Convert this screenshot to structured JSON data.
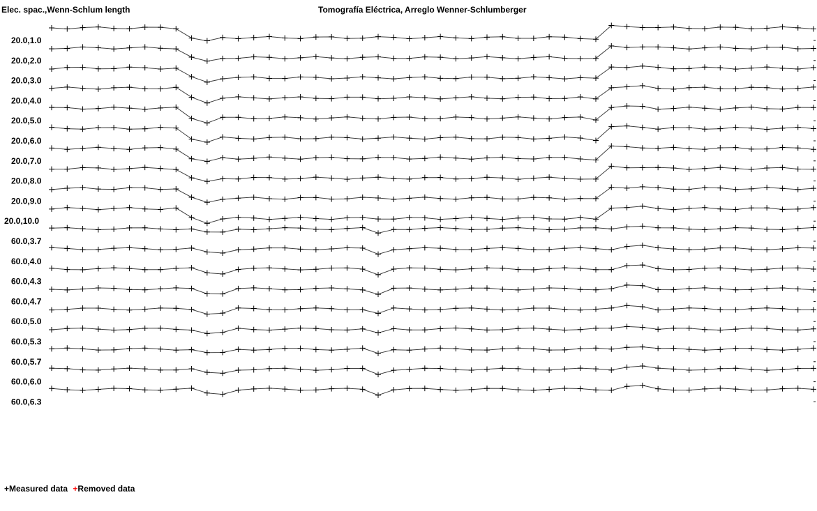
{
  "header": {
    "left_label": "Elec. spac.,Wenn-Schlum length",
    "title": "Tomografía Eléctrica, Arreglo Wenner-Schlumberger"
  },
  "legend": {
    "measured_symbol": "+",
    "measured_label": "Measured data",
    "removed_symbol": "+",
    "removed_label": "Removed data"
  },
  "colors": {
    "measured": "#000000",
    "removed": "#ff0000",
    "line": "#404040"
  },
  "chart_data": {
    "type": "line",
    "title": "Tomografía Eléctrica, Arreglo Wenner-Schlumberger",
    "ylabel": "Elec. spac.,Wenn-Schlum length",
    "row_labels": [
      "20.0,1.0",
      "20.0,2.0",
      "20.0,3.0",
      "20.0,4.0",
      "20.0,5.0",
      "20.0,6.0",
      "20.0,7.0",
      "20.0,8.0",
      "20.0,9.0",
      "20.0,10.0",
      "60.0,3.7",
      "60.0,4.0",
      "60.0,4.3",
      "60.0,4.7",
      "60.0,5.0",
      "60.0,5.3",
      "60.0,5.7",
      "60.0,6.0",
      "60.0,6.3"
    ],
    "grid": false,
    "legend_position": "bottom-left"
  }
}
